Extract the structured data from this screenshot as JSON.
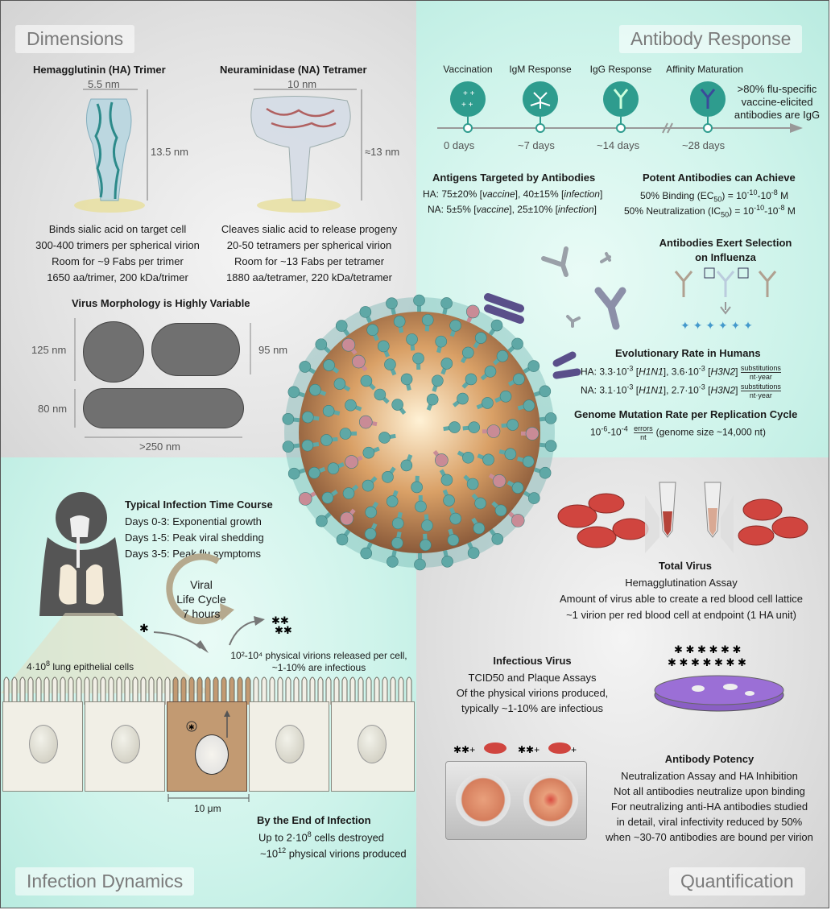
{
  "quadrants": {
    "dimensions": "Dimensions",
    "antibody": "Antibody Response",
    "infection": "Infection Dynamics",
    "quant": "Quantification"
  },
  "ha": {
    "title": "Hemagglutinin (HA) Trimer",
    "width": "5.5 nm",
    "height": "13.5 nm",
    "lines": [
      "Binds sialic acid on target cell",
      "300-400 trimers per spherical virion",
      "Room for ~9 Fabs per trimer",
      "1650 aa/trimer, 200 kDa/trimer"
    ]
  },
  "na": {
    "title": "Neuraminidase (NA) Tetramer",
    "width": "10 nm",
    "height": "≈13 nm",
    "lines": [
      "Cleaves sialic acid to release progeny",
      "20-50 tetramers per spherical virion",
      "Room for ~13 Fabs per tetramer",
      "1880 aa/tetramer, 220 kDa/tetramer"
    ]
  },
  "morph": {
    "title": "Virus Morphology is Highly Variable",
    "d125": "125 nm",
    "d95": "95 nm",
    "d80": "80 nm",
    "d250": ">250 nm"
  },
  "timeline": {
    "stages": [
      "Vaccination",
      "IgM Response",
      "IgG Response",
      "Affinity Maturation"
    ],
    "days": [
      "0 days",
      "~7 days",
      "~14 days",
      "~28 days"
    ],
    "note": [
      ">80% flu-specific",
      "vaccine-elicited",
      "antibodies are IgG"
    ]
  },
  "targets": {
    "title": "Antigens Targeted by Antibodies",
    "ha": {
      "pre": "HA: 75±20% [",
      "v": "vaccine",
      "mid": "], 40±15% [",
      "i": "infection",
      "post": "]"
    },
    "na": {
      "pre": "NA: 5±5% [",
      "v": "vaccine",
      "mid": "], 25±10% [",
      "i": "infection",
      "post": "]"
    }
  },
  "potent": {
    "title": "Potent Antibodies can Achieve",
    "l1": {
      "a": "50% Binding (EC",
      "sub": "50",
      "b": ") = 10",
      "e1": "-10",
      "c": "-10",
      "e2": "-8",
      "d": " M"
    },
    "l2": {
      "a": "50% Neutralization (IC",
      "sub": "50",
      "b": ") = 10",
      "e1": "-10",
      "c": "-10",
      "e2": "-8",
      "d": " M"
    }
  },
  "selection": {
    "l1": "Antibodies Exert Selection",
    "l2": "on Influenza"
  },
  "evo": {
    "title": "Evolutionary Rate in Humans",
    "ha": {
      "a": "HA: 3.3·10",
      "e1": "-3",
      "b": " [",
      "s1": "H1N1",
      "c": "], 3.6·10",
      "e2": "-3",
      "d": " [",
      "s2": "H3N2",
      "e": "]"
    },
    "na": {
      "a": "NA: 3.1·10",
      "e1": "-3",
      "b": " [",
      "s1": "H1N1",
      "c": "], 2.7·10",
      "e2": "-3",
      "d": " [",
      "s2": "H3N2",
      "e": "]"
    },
    "frac_top": "substitutions",
    "frac_bot": "nt·year"
  },
  "genome": {
    "title": "Genome Mutation Rate per Replication Cycle",
    "a": "10",
    "e1": "-6",
    "b": "-10",
    "e2": "-4",
    "ft": "errors",
    "fb": "nt",
    "c": "(genome size ~14,000 nt)"
  },
  "course": {
    "title": "Typical Infection Time Course",
    "lines": [
      "Days 0-3: Exponential growth",
      "Days 1-5: Peak viral shedding",
      "Days 3-5: Peak flu symptoms"
    ]
  },
  "cycle": {
    "l1": "Viral",
    "l2": "Life Cycle",
    "l3": "7 hours"
  },
  "lung": {
    "a": "4·10",
    "e": "8",
    "b": " lung epithelial cells"
  },
  "release": {
    "l1": "10²-10⁴ physical virions released per cell,",
    "l2": "~1-10% are infectious"
  },
  "scale": "10 μm",
  "end": {
    "title": "By the End of Infection",
    "l1a": "Up to 2·10",
    "l1e": "8",
    "l1b": " cells destroyed",
    "l2a": "~10",
    "l2e": "12",
    "l2b": " physical virions produced"
  },
  "total": {
    "title": "Total Virus",
    "lines": [
      "Hemagglutination Assay",
      "Amount of virus able to create a red blood cell lattice",
      "~1 virion per red blood cell at endpoint (1 HA unit)"
    ]
  },
  "infectious": {
    "title": "Infectious Virus",
    "lines": [
      "TCID50 and Plaque Assays",
      "Of the physical virions produced,",
      "typically ~1-10% are infectious"
    ]
  },
  "potency": {
    "title": "Antibody Potency",
    "lines": [
      "Neutralization Assay and HA Inhibition",
      "Not all antibodies neutralize upon binding",
      "For neutralizing anti-HA antibodies studied",
      "in detail, viral infectivity reduced by 50%",
      "when ~30-70 antibodies are bound per virion"
    ]
  },
  "colors": {
    "teal": "#5fa8a6",
    "pink": "#c98b96",
    "virusCore": "#d9a066",
    "antibody": "#8c8fa8",
    "rbc": "#c9443f"
  }
}
